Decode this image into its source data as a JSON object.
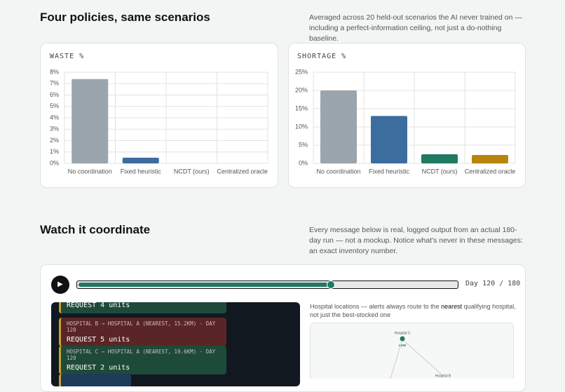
{
  "section1": {
    "title": "Four policies, same scenarios",
    "description": "Averaged across 20 held-out scenarios the AI never trained on — including a perfect-information ceiling, not just a do-nothing baseline."
  },
  "chart_data": [
    {
      "type": "bar",
      "title": "WASTE %",
      "categories": [
        "No coordination",
        "Fixed heuristic",
        "NCDT (ours)",
        "Centralized oracle"
      ],
      "values": [
        7.4,
        0.5,
        0,
        0
      ],
      "colors": [
        "#9aa5ad",
        "#3b6e9e",
        "#1f7a62",
        "#b8860b"
      ],
      "ylim": [
        0,
        8
      ],
      "yticks": [
        {
          "value": 0,
          "label": "0%"
        },
        {
          "value": 1,
          "label": "1%"
        },
        {
          "value": 2,
          "label": "2%"
        },
        {
          "value": 3,
          "label": "3%"
        },
        {
          "value": 4,
          "label": "4%"
        },
        {
          "value": 5,
          "label": "5%"
        },
        {
          "value": 6,
          "label": "6%"
        },
        {
          "value": 7,
          "label": "7%"
        },
        {
          "value": 8,
          "label": "8%"
        }
      ],
      "grid": true
    },
    {
      "type": "bar",
      "title": "SHORTAGE %",
      "categories": [
        "No coordination",
        "Fixed heuristic",
        "NCDT (ours)",
        "Centralized oracle"
      ],
      "values": [
        20,
        13,
        2.5,
        2.3
      ],
      "colors": [
        "#9aa5ad",
        "#3b6e9e",
        "#1f7a62",
        "#b8860b"
      ],
      "ylim": [
        0,
        25
      ],
      "yticks": [
        {
          "value": 0,
          "label": "0%"
        },
        {
          "value": 5,
          "label": "5%"
        },
        {
          "value": 10,
          "label": "10%"
        },
        {
          "value": 15,
          "label": "15%"
        },
        {
          "value": 20,
          "label": "20%"
        },
        {
          "value": 25,
          "label": "25%"
        }
      ],
      "grid": true
    }
  ],
  "section2": {
    "title": "Watch it coordinate",
    "description": "Every message below is real, logged output from an actual 180-day run — not a mockup. Notice what's never in these messages: an exact inventory number."
  },
  "playback": {
    "day": 120,
    "total_days": 180,
    "label": "Day 120 / 180"
  },
  "messages": [
    {
      "body": "REQUEST 4 units"
    },
    {
      "header": "HOSPITAL B → HOSPITAL A (NEAREST, 15.2KM) · DAY 120",
      "body": "REQUEST 5 units"
    },
    {
      "header": "HOSPITAL C → HOSPITAL A (NEAREST, 19.6KM) · DAY 120",
      "body": "REQUEST 2 units"
    }
  ],
  "map": {
    "caption_start": "Hospital locations — alerts always route to the ",
    "caption_emphasis": "nearest",
    "caption_end": " qualifying hospital, not just the best-stocked one",
    "nodes": [
      {
        "label": "Hospital C",
        "status": "LOW"
      },
      {
        "label": "Hospital B"
      }
    ]
  }
}
